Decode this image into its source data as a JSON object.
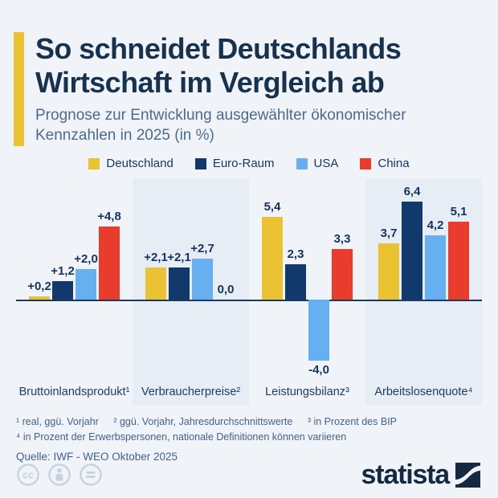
{
  "infographic": {
    "title": "So schneidet Deutschlands Wirtschaft im Vergleich ab",
    "title_lines": [
      "So schneidet Deutschlands",
      "Wirtschaft im Vergleich ab"
    ],
    "subtitle": "Prognose zur Entwicklung ausgewählter ökonomischer Kennzahlen in 2025 (in %)",
    "subtitle_lines": [
      "Prognose zur Entwicklung ausgewählter ökonomischer",
      "Kennzahlen in 2025 (in %)"
    ],
    "accent_color": "#EAC232",
    "background_color": "#F0F4F9"
  },
  "chart_data": {
    "type": "bar",
    "title": "Prognose zur Entwicklung ausgewählter ökonomischer Kennzahlen in 2025 (in %)",
    "unit": "%",
    "categories": [
      "Bruttoinlandsprodukt¹",
      "Verbraucherpreise²",
      "Leistungsbilanz³",
      "Arbeitslosenquote⁴"
    ],
    "series": [
      {
        "name": "Deutschland",
        "color": "#EAC232",
        "values": [
          0.2,
          2.1,
          5.4,
          3.7
        ],
        "value_labels": [
          "+0,2",
          "+2,1",
          "5,4",
          "3,7"
        ]
      },
      {
        "name": "Euro-Raum",
        "color": "#12396B",
        "values": [
          1.2,
          2.1,
          2.3,
          6.4
        ],
        "value_labels": [
          "+1,2",
          "+2,1",
          "2,3",
          "6,4"
        ]
      },
      {
        "name": "USA",
        "color": "#66B0F2",
        "values": [
          2.0,
          2.7,
          -4.0,
          4.2
        ],
        "value_labels": [
          "+2,0",
          "+2,7",
          "-4,0",
          "4,2"
        ]
      },
      {
        "name": "China",
        "color": "#E93C2D",
        "values": [
          4.8,
          0.0,
          3.3,
          5.1
        ],
        "value_labels": [
          "+4,8",
          "0,0",
          "3,3",
          "5,1"
        ]
      }
    ],
    "ylim": [
      -4.5,
      7.2
    ],
    "grid": false,
    "legend_position": "top-center",
    "shaded_group_indexes": [
      1,
      3
    ],
    "shaded_panel_color": "#E7EDF5",
    "axis_color": "#1B3A5F",
    "value_label_color": "#16335E"
  },
  "footnotes": {
    "items": [
      "¹ real, ggü. Vorjahr",
      "² ggü. Vorjahr, Jahresdurchschnittswerte",
      "³ in Prozent des BIP",
      "⁴ in Prozent der Erwerbspersonen, nationale Definitionen können variieren"
    ]
  },
  "source": "Quelle: IWF - WEO Oktober 2025",
  "footer": {
    "license_icons": [
      "cc",
      "attribution",
      "no-derivatives"
    ],
    "brand_name": "statista",
    "brand_color": "#152A42",
    "license_icon_color": "#C8D2DE"
  }
}
